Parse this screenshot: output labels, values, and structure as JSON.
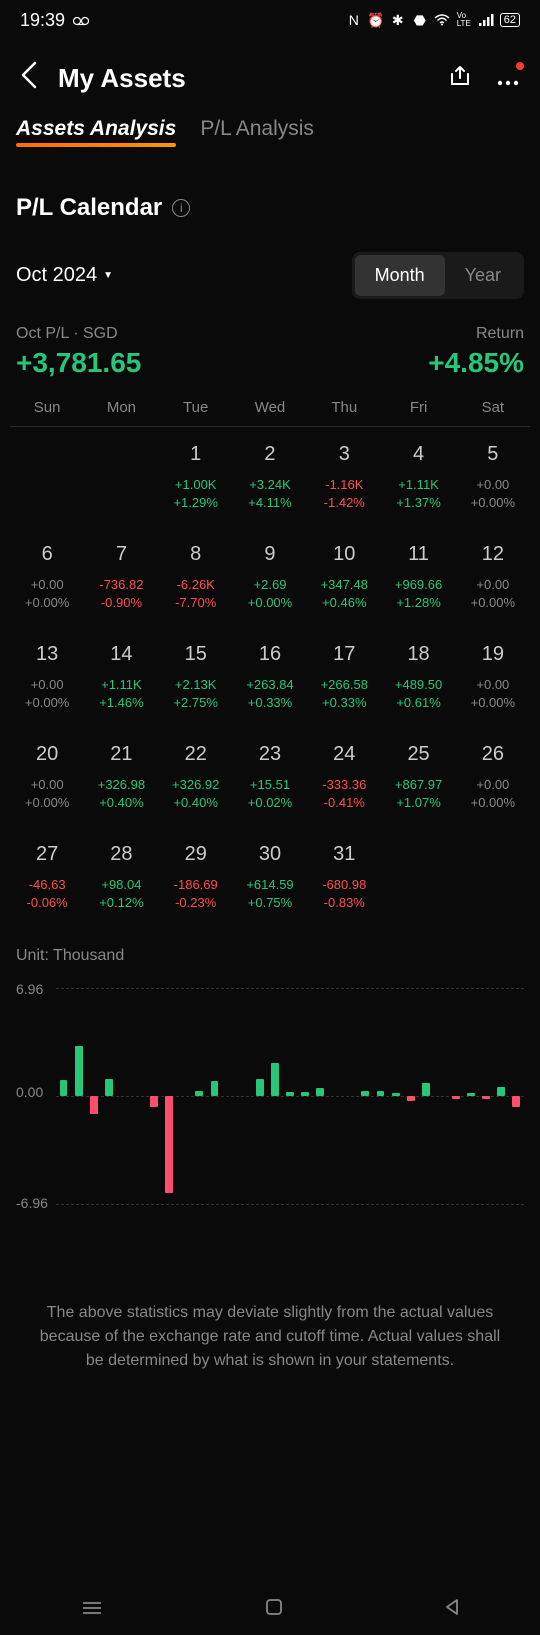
{
  "statusBar": {
    "time": "19:39",
    "battery": "62"
  },
  "header": {
    "title": "My Assets"
  },
  "tabs": {
    "active": "Assets Analysis",
    "inactive": "P/L Analysis"
  },
  "section": {
    "title": "P/L Calendar"
  },
  "controls": {
    "month": "Oct 2024",
    "monthBtn": "Month",
    "yearBtn": "Year"
  },
  "summary": {
    "plLabel": "Oct P/L · SGD",
    "plValue": "+3,781.65",
    "returnLabel": "Return",
    "returnValue": "+4.85%"
  },
  "calendar": {
    "headers": [
      "Sun",
      "Mon",
      "Tue",
      "Wed",
      "Thu",
      "Fri",
      "Sat"
    ],
    "leadingEmpty": 2,
    "days": [
      {
        "d": "1",
        "v1": "+1.00K",
        "v2": "+1.29%",
        "c": "positive"
      },
      {
        "d": "2",
        "v1": "+3.24K",
        "v2": "+4.11%",
        "c": "positive"
      },
      {
        "d": "3",
        "v1": "-1.16K",
        "v2": "-1.42%",
        "c": "negative"
      },
      {
        "d": "4",
        "v1": "+1.11K",
        "v2": "+1.37%",
        "c": "positive"
      },
      {
        "d": "5",
        "v1": "+0.00",
        "v2": "+0.00%",
        "c": "neutral"
      },
      {
        "d": "6",
        "v1": "+0.00",
        "v2": "+0.00%",
        "c": "neutral"
      },
      {
        "d": "7",
        "v1": "-736.82",
        "v2": "-0.90%",
        "c": "negative"
      },
      {
        "d": "8",
        "v1": "-6.26K",
        "v2": "-7.70%",
        "c": "negative"
      },
      {
        "d": "9",
        "v1": "+2.69",
        "v2": "+0.00%",
        "c": "positive"
      },
      {
        "d": "10",
        "v1": "+347.48",
        "v2": "+0.46%",
        "c": "positive"
      },
      {
        "d": "11",
        "v1": "+969.66",
        "v2": "+1.28%",
        "c": "positive"
      },
      {
        "d": "12",
        "v1": "+0.00",
        "v2": "+0.00%",
        "c": "neutral"
      },
      {
        "d": "13",
        "v1": "+0.00",
        "v2": "+0.00%",
        "c": "neutral"
      },
      {
        "d": "14",
        "v1": "+1.11K",
        "v2": "+1.46%",
        "c": "positive"
      },
      {
        "d": "15",
        "v1": "+2.13K",
        "v2": "+2.75%",
        "c": "positive"
      },
      {
        "d": "16",
        "v1": "+263.84",
        "v2": "+0.33%",
        "c": "positive"
      },
      {
        "d": "17",
        "v1": "+266.58",
        "v2": "+0.33%",
        "c": "positive"
      },
      {
        "d": "18",
        "v1": "+489.50",
        "v2": "+0.61%",
        "c": "positive"
      },
      {
        "d": "19",
        "v1": "+0.00",
        "v2": "+0.00%",
        "c": "neutral"
      },
      {
        "d": "20",
        "v1": "+0.00",
        "v2": "+0.00%",
        "c": "neutral"
      },
      {
        "d": "21",
        "v1": "+326.98",
        "v2": "+0.40%",
        "c": "positive"
      },
      {
        "d": "22",
        "v1": "+326.92",
        "v2": "+0.40%",
        "c": "positive"
      },
      {
        "d": "23",
        "v1": "+15.51",
        "v2": "+0.02%",
        "c": "positive"
      },
      {
        "d": "24",
        "v1": "-333.36",
        "v2": "-0.41%",
        "c": "negative"
      },
      {
        "d": "25",
        "v1": "+867.97",
        "v2": "+1.07%",
        "c": "positive"
      },
      {
        "d": "26",
        "v1": "+0.00",
        "v2": "+0.00%",
        "c": "neutral"
      },
      {
        "d": "27",
        "v1": "-46.63",
        "v2": "-0.06%",
        "c": "negative"
      },
      {
        "d": "28",
        "v1": "+98.04",
        "v2": "+0.12%",
        "c": "positive"
      },
      {
        "d": "29",
        "v1": "-186.69",
        "v2": "-0.23%",
        "c": "negative"
      },
      {
        "d": "30",
        "v1": "+614.59",
        "v2": "+0.75%",
        "c": "positive"
      },
      {
        "d": "31",
        "v1": "-680.98",
        "v2": "-0.83%",
        "c": "negative"
      }
    ]
  },
  "chart": {
    "unitLabel": "Unit: Thousand",
    "yTop": "6.96",
    "yMid": "0.00",
    "yBot": "-6.96",
    "range": 6.96,
    "colors": {
      "positive": "#26c77a",
      "negative": "#ff4d6d"
    },
    "bars": [
      1.0,
      3.24,
      -1.16,
      1.11,
      0.0,
      0.0,
      -0.74,
      -6.26,
      0.003,
      0.35,
      0.97,
      0.0,
      0.0,
      1.11,
      2.13,
      0.26,
      0.27,
      0.49,
      0.0,
      0.0,
      0.33,
      0.33,
      0.02,
      -0.33,
      0.87,
      0.0,
      -0.05,
      0.1,
      -0.19,
      0.61,
      -0.68
    ]
  },
  "disclaimer": "The above statistics may deviate slightly from the actual values because of the exchange rate and cutoff time. Actual values shall be determined by what is shown in your statements."
}
